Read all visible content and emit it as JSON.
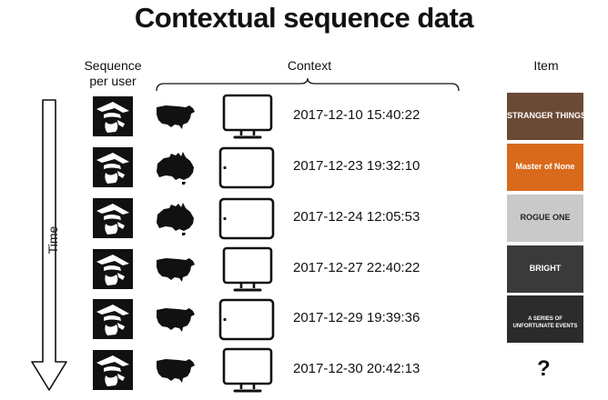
{
  "title": "Contextual sequence data",
  "headers": {
    "sequence": "Sequence per user",
    "context": "Context",
    "item": "Item"
  },
  "axis": {
    "time_label": "Time"
  },
  "rows": [
    {
      "avatar": "user-avatar-icon",
      "location": "usa",
      "device": "tv",
      "timestamp": "2017-12-10 15:40:22",
      "item": {
        "title": "STRANGER THINGS",
        "bg": "#6b4a35"
      }
    },
    {
      "avatar": "user-avatar-icon",
      "location": "australia",
      "device": "tablet",
      "timestamp": "2017-12-23 19:32:10",
      "item": {
        "title": "Master of None",
        "bg": "#d96a1c"
      }
    },
    {
      "avatar": "user-avatar-icon",
      "location": "australia",
      "device": "tablet",
      "timestamp": "2017-12-24 12:05:53",
      "item": {
        "title": "ROGUE ONE",
        "bg": "#c9c9c9"
      }
    },
    {
      "avatar": "user-avatar-icon",
      "location": "usa",
      "device": "tv",
      "timestamp": "2017-12-27 22:40:22",
      "item": {
        "title": "BRIGHT",
        "bg": "#3a3a3a"
      }
    },
    {
      "avatar": "user-avatar-icon",
      "location": "usa",
      "device": "tablet",
      "timestamp": "2017-12-29 19:39:36",
      "item": {
        "title": "A SERIES OF UNFORTUNATE EVENTS",
        "bg": "#2b2b2b"
      }
    },
    {
      "avatar": "user-avatar-icon",
      "location": "usa",
      "device": "tv",
      "timestamp": "2017-12-30 20:42:13",
      "item": null
    }
  ],
  "unknown_item": "?"
}
